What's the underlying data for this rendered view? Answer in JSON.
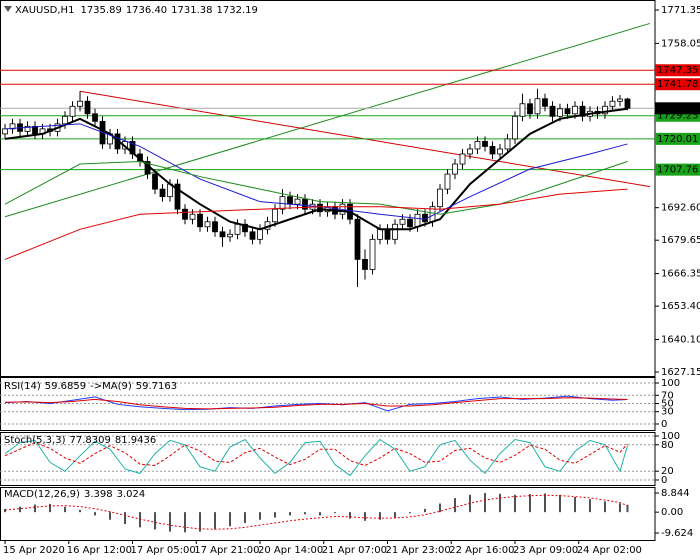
{
  "chart_data": [
    {
      "type": "candlestick",
      "title": "XAUUSD,H1",
      "ohlc_labels": [
        "1735.89",
        "1736.40",
        "1731.38",
        "1732.19"
      ],
      "xlim": [
        -0.67,
        86.67
      ],
      "xticks": [
        {
          "value": 0,
          "label": "15 Apr 2020"
        },
        {
          "value": 8.5,
          "label": "16 Apr 12:00"
        },
        {
          "value": 17,
          "label": "17 Apr 05:00"
        },
        {
          "value": 25.5,
          "label": "17 Apr 21:00"
        },
        {
          "value": 34,
          "label": "20 Apr 14:00"
        },
        {
          "value": 42.5,
          "label": "21 Apr 07:00"
        },
        {
          "value": 51,
          "label": "21 Apr 23:00"
        },
        {
          "value": 59.5,
          "label": "22 Apr 16:00"
        },
        {
          "value": 68,
          "label": "23 Apr 09:00"
        },
        {
          "value": 76.5,
          "label": "24 Apr 02:00"
        }
      ],
      "ylim": [
        1625.56,
        1775.33
      ],
      "yticks": [
        1771.35,
        1758.05,
        {
          "value": 1692.6,
          "label": "1692.60"
        },
        1679.65,
        1666.35,
        {
          "value": 1653.4,
          "label": "1653.40"
        },
        {
          "value": 1640.1,
          "label": "1640.10"
        },
        1627.15
      ],
      "open": [
        1722,
        1724,
        1726,
        1723,
        1725,
        1722,
        1724,
        1723,
        1726,
        1729,
        1733,
        1735,
        1730,
        1727,
        1718,
        1722,
        1716,
        1719,
        1714,
        1711,
        1706,
        1700,
        1697,
        1702,
        1692,
        1688,
        1690,
        1685,
        1687,
        1683,
        1681,
        1682,
        1686,
        1683,
        1680,
        1684,
        1687,
        1692,
        1697,
        1694,
        1696,
        1692,
        1694,
        1691,
        1693,
        1690,
        1694,
        1688,
        1672,
        1668,
        1680,
        1684,
        1680,
        1686,
        1688,
        1685,
        1690,
        1687,
        1693,
        1700,
        1706,
        1710,
        1714,
        1716,
        1719,
        1717,
        1714,
        1716,
        1720,
        1729,
        1734,
        1730,
        1736,
        1733,
        1729,
        1732,
        1730,
        1733,
        1729,
        1731,
        1730,
        1733,
        1735,
        1735.89
      ],
      "high": [
        1726,
        1728,
        1728,
        1727,
        1727,
        1726,
        1726,
        1728,
        1731,
        1735,
        1739,
        1737,
        1732,
        1729,
        1724,
        1724,
        1721,
        1721,
        1716,
        1713,
        1708,
        1702,
        1704,
        1704,
        1694,
        1692,
        1692,
        1689,
        1689,
        1685,
        1684,
        1688,
        1688,
        1685,
        1686,
        1689,
        1694,
        1700,
        1699,
        1698,
        1698,
        1696,
        1696,
        1695,
        1695,
        1696,
        1696,
        1690,
        1676,
        1682,
        1686,
        1686,
        1688,
        1690,
        1690,
        1692,
        1692,
        1695,
        1702,
        1708,
        1712,
        1716,
        1718,
        1721,
        1721,
        1719,
        1718,
        1722,
        1731,
        1738,
        1736,
        1740,
        1738,
        1735,
        1734,
        1734,
        1735,
        1735,
        1733,
        1733,
        1735,
        1737,
        1737.5,
        1736.4
      ],
      "low": [
        1720,
        1722,
        1721,
        1721,
        1720,
        1720,
        1721,
        1721,
        1724,
        1727,
        1731,
        1728,
        1725,
        1716,
        1716,
        1714,
        1714,
        1712,
        1709,
        1704,
        1698,
        1695,
        1695,
        1690,
        1686,
        1686,
        1683,
        1683,
        1681,
        1677,
        1679,
        1680,
        1681,
        1678,
        1678,
        1682,
        1685,
        1690,
        1692,
        1692,
        1690,
        1690,
        1689,
        1689,
        1688,
        1688,
        1686,
        1661,
        1664,
        1666,
        1678,
        1678,
        1678,
        1684,
        1683,
        1683,
        1685,
        1685,
        1691,
        1698,
        1704,
        1708,
        1712,
        1714,
        1715,
        1712,
        1712,
        1714,
        1718,
        1727,
        1728,
        1728,
        1731,
        1727,
        1727,
        1728,
        1728,
        1727,
        1727,
        1728,
        1728,
        1731,
        1733,
        1731.38
      ],
      "close": [
        1724,
        1726,
        1723,
        1725,
        1722,
        1724,
        1723,
        1726,
        1729,
        1733,
        1735,
        1730,
        1727,
        1718,
        1722,
        1716,
        1719,
        1714,
        1711,
        1706,
        1700,
        1697,
        1702,
        1692,
        1688,
        1690,
        1685,
        1687,
        1683,
        1681,
        1682,
        1686,
        1683,
        1680,
        1684,
        1687,
        1692,
        1697,
        1694,
        1696,
        1692,
        1694,
        1691,
        1693,
        1690,
        1694,
        1688,
        1672,
        1668,
        1680,
        1684,
        1680,
        1686,
        1688,
        1685,
        1690,
        1687,
        1693,
        1700,
        1706,
        1710,
        1714,
        1716,
        1719,
        1717,
        1714,
        1716,
        1720,
        1729,
        1734,
        1730,
        1736,
        1733,
        1729,
        1732,
        1730,
        1733,
        1729,
        1731,
        1730,
        1733,
        1735,
        1735.89,
        1732.19
      ],
      "up_color": "#ffffff",
      "down_color": "#000000",
      "series": [
        {
          "color": "#000000",
          "width": 2,
          "x": [
            0,
            5,
            10,
            14,
            18,
            22,
            26,
            30,
            34,
            38,
            42,
            46,
            50,
            54,
            58,
            62,
            66,
            70,
            74,
            78,
            83
          ],
          "values": [
            1720,
            1722,
            1728,
            1722,
            1712,
            1702,
            1694,
            1687,
            1684,
            1688,
            1692,
            1691,
            1684,
            1684,
            1688,
            1702,
            1712,
            1722,
            1728,
            1730,
            1732
          ]
        },
        {
          "color": "#1a1ad0",
          "width": 1,
          "x": [
            0,
            10,
            18,
            26,
            34,
            42,
            50,
            56,
            62,
            70,
            78,
            83
          ],
          "values": [
            1724,
            1726,
            1717,
            1704,
            1695,
            1693,
            1690,
            1688,
            1697,
            1708,
            1714,
            1718
          ]
        },
        {
          "color": "#1e8c1e",
          "width": 1,
          "x": [
            0,
            10,
            18,
            26,
            34,
            42,
            50,
            58,
            66,
            74,
            83
          ],
          "values": [
            1694,
            1710,
            1711,
            1705,
            1700,
            1695,
            1694,
            1690,
            1694,
            1702,
            1711
          ]
        },
        {
          "color": "#e00000",
          "width": 1,
          "x": [
            0,
            10,
            18,
            26,
            34,
            42,
            50,
            58,
            66,
            74,
            83
          ],
          "values": [
            1672,
            1684,
            1690,
            1691,
            1692,
            1693,
            1693,
            1692,
            1694,
            1698,
            1700
          ]
        }
      ],
      "trendlines": [
        {
          "color": "#1e8c1e",
          "x": [
            0,
            86
          ],
          "values": [
            1689,
            1766
          ]
        },
        {
          "color": "#d00000",
          "x": [
            10,
            86
          ],
          "values": [
            1739,
            1701
          ]
        }
      ],
      "levels": [
        1747.35,
        1741.78,
        1729.23,
        1720.01,
        1707.76
      ],
      "level_colors": [
        "#e60000",
        "#e60000",
        "#1aa31a",
        "#1aa31a",
        "#1aa31a"
      ],
      "level_text_colors": [
        "#ffffff",
        "#ffffff",
        "#000000",
        "#000000",
        "#000000"
      ],
      "price_color": "#000000"
    },
    {
      "type": "line",
      "ylim": [
        -14.6,
        114.6
      ],
      "yticks": [
        100,
        70,
        50,
        30,
        0
      ],
      "grid": true,
      "x": [
        0,
        3,
        6,
        9,
        12,
        15,
        18,
        21,
        24,
        27,
        30,
        33,
        36,
        39,
        42,
        45,
        48,
        51,
        54,
        57,
        60,
        63,
        66,
        69,
        72,
        75,
        78,
        81,
        83
      ],
      "series": [
        {
          "name": "RSI(14)",
          "color": "#1e3cff",
          "values": [
            52,
            55,
            50,
            58,
            66,
            48,
            42,
            38,
            35,
            36,
            40,
            38,
            44,
            48,
            50,
            47,
            52,
            32,
            48,
            50,
            55,
            62,
            66,
            60,
            63,
            68,
            62,
            58,
            59.6859
          ]
        },
        {
          "name": "->MA(9)",
          "color": "#e00000",
          "values": [
            53,
            54,
            52,
            55,
            60,
            55,
            47,
            42,
            38,
            37,
            38,
            39,
            41,
            45,
            48,
            48,
            50,
            44,
            44,
            47,
            52,
            57,
            62,
            62,
            62,
            64,
            63,
            61,
            59.7163
          ]
        }
      ]
    },
    {
      "type": "line",
      "title": "Stoch(5,3,3)",
      "ylim": [
        -11.4,
        109.1
      ],
      "yticks": [
        100,
        80,
        20,
        0
      ],
      "grid": true,
      "x": [
        0,
        2,
        4,
        6,
        8,
        10,
        12,
        14,
        16,
        18,
        20,
        22,
        24,
        26,
        28,
        30,
        32,
        34,
        36,
        38,
        40,
        42,
        44,
        46,
        48,
        50,
        52,
        54,
        56,
        58,
        60,
        62,
        64,
        66,
        68,
        70,
        72,
        74,
        76,
        78,
        80,
        82,
        83
      ],
      "series": [
        {
          "color": "#20b2aa",
          "values": [
            60,
            85,
            90,
            40,
            20,
            55,
            88,
            70,
            25,
            15,
            60,
            90,
            80,
            30,
            20,
            75,
            92,
            50,
            15,
            40,
            85,
            88,
            35,
            10,
            55,
            92,
            70,
            20,
            30,
            80,
            90,
            45,
            15,
            60,
            92,
            85,
            30,
            20,
            65,
            90,
            80,
            20,
            77.8309
          ]
        },
        {
          "color": "#e00000",
          "dash": "3 2",
          "values": [
            55,
            70,
            85,
            72,
            50,
            38,
            60,
            78,
            62,
            36,
            33,
            55,
            80,
            66,
            43,
            40,
            62,
            72,
            52,
            35,
            47,
            70,
            70,
            44,
            33,
            50,
            72,
            60,
            40,
            43,
            67,
            72,
            50,
            40,
            56,
            79,
            70,
            45,
            38,
            58,
            78,
            63,
            81.9436
          ]
        }
      ]
    },
    {
      "type": "bar",
      "title": "MACD(12,26,9)",
      "ylim": [
        -12.856,
        11.614
      ],
      "yticks": [
        8.844,
        {
          "value": 0,
          "label": "0.00"
        },
        -9.624
      ],
      "x": [
        0,
        2,
        4,
        6,
        8,
        10,
        12,
        14,
        16,
        18,
        20,
        22,
        24,
        26,
        28,
        30,
        32,
        34,
        36,
        38,
        40,
        42,
        44,
        46,
        48,
        50,
        52,
        54,
        56,
        58,
        60,
        62,
        64,
        66,
        68,
        70,
        72,
        74,
        76,
        78,
        80,
        82,
        83
      ],
      "series": [
        {
          "kind": "bar",
          "color": "#505050",
          "values": [
            1.5,
            2.5,
            3.5,
            3.8,
            2.5,
            1.0,
            -1.5,
            -3.5,
            -5.5,
            -7.0,
            -8.0,
            -9.0,
            -9.3,
            -9.0,
            -8.0,
            -6.5,
            -5.0,
            -3.5,
            -2.5,
            -1.5,
            -1.0,
            -1.5,
            -0.5,
            -3.0,
            -4.0,
            -3.5,
            -2.5,
            -0.5,
            1.5,
            4.0,
            6.5,
            8.0,
            8.8,
            8.5,
            8.0,
            8.3,
            8.6,
            8.0,
            7.0,
            6.0,
            5.0,
            4.0,
            3.398
          ]
        },
        {
          "color": "#e00000",
          "dash": "2 2",
          "values": [
            1.0,
            1.6,
            2.3,
            2.9,
            3.0,
            2.6,
            1.6,
            0.2,
            -1.5,
            -3.2,
            -4.7,
            -6.0,
            -7.0,
            -7.7,
            -7.9,
            -7.7,
            -7.0,
            -6.0,
            -5.0,
            -4.0,
            -3.2,
            -2.6,
            -2.0,
            -2.2,
            -2.6,
            -2.8,
            -2.7,
            -2.2,
            -1.2,
            0.4,
            2.3,
            4.1,
            5.6,
            6.6,
            7.2,
            7.6,
            7.8,
            7.6,
            7.2,
            6.6,
            5.6,
            4.4,
            3.024
          ]
        }
      ]
    }
  ]
}
